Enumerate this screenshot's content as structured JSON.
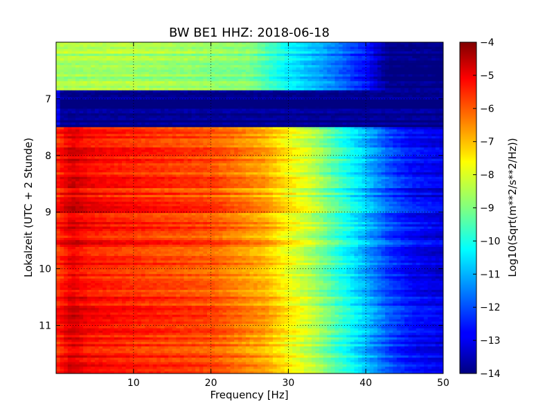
{
  "chart_data": {
    "type": "heatmap",
    "title": "BW BE1 HHZ: 2018-06-18",
    "xlabel": "Frequency [Hz]",
    "ylabel": "Lokalzeit (UTC + 2 Stunde)",
    "xlim": [
      0,
      50
    ],
    "ylim": [
      11.85,
      6.0
    ],
    "x_ticks": [
      10,
      20,
      30,
      40,
      50
    ],
    "y_ticks": [
      7,
      8,
      9,
      10,
      11
    ],
    "grid": true,
    "colormap": "jet",
    "colorbar": {
      "label": "Log10(Sqrt(m**2/s**2/Hz))",
      "range": [
        -14,
        -4
      ],
      "ticks": [
        -4,
        -5,
        -6,
        -7,
        -8,
        -9,
        -10,
        -11,
        -12,
        -13,
        -14
      ]
    },
    "time_segments": [
      {
        "t_start": 6.0,
        "t_end": 6.85,
        "level_profile": [
          [
            0,
            -8.6
          ],
          [
            10,
            -8.6
          ],
          [
            25,
            -9.0
          ],
          [
            30,
            -10.3
          ],
          [
            35,
            -11.3
          ],
          [
            40,
            -12.6
          ],
          [
            43,
            -14.0
          ],
          [
            50,
            -14.0
          ]
        ]
      },
      {
        "t_start": 6.85,
        "t_end": 7.5,
        "level_profile": [
          [
            0,
            -12.5
          ],
          [
            0.6,
            -14.0
          ],
          [
            50,
            -14.0
          ]
        ]
      },
      {
        "t_start": 7.5,
        "t_end": 11.85,
        "level_profile": [
          [
            0,
            -5.7
          ],
          [
            2,
            -4.9
          ],
          [
            4,
            -5.3
          ],
          [
            10,
            -5.6
          ],
          [
            20,
            -6.0
          ],
          [
            27,
            -6.9
          ],
          [
            30,
            -7.7
          ],
          [
            33,
            -8.4
          ],
          [
            36,
            -9.5
          ],
          [
            40,
            -10.9
          ],
          [
            43,
            -12.0
          ],
          [
            46,
            -12.7
          ],
          [
            50,
            -13.0
          ]
        ]
      }
    ]
  }
}
